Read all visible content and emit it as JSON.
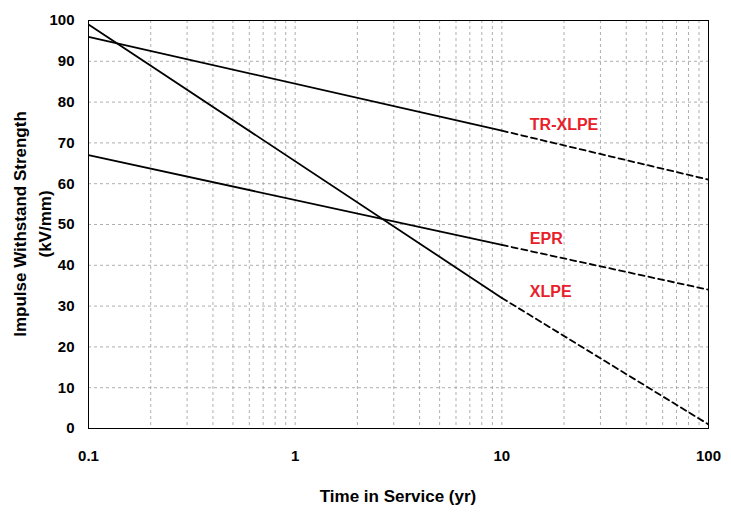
{
  "chart_data": {
    "type": "line",
    "x_label": "Time in Service (yr)",
    "y_label": "Impulse Withstand Strength\n(kV/mm)",
    "log": "x",
    "grid": true,
    "color": "#000000",
    "xlim": [
      0.1,
      100
    ],
    "xticks": [
      0.1,
      1,
      10,
      100
    ],
    "ylim": [
      0,
      100
    ],
    "yticks": [
      0,
      10,
      20,
      30,
      40,
      50,
      60,
      70,
      80,
      90,
      100
    ],
    "series": [
      {
        "name": "TR-XLPE",
        "color": "#e8202a",
        "line_style": "solid",
        "x": [
          0.1,
          10
        ],
        "values": [
          96,
          73
        ],
        "projection": {
          "line_style": "dashed",
          "x": [
            10,
            100
          ],
          "values": [
            73,
            61
          ]
        }
      },
      {
        "name": "EPR",
        "color": "#e8202a",
        "line_style": "solid",
        "x": [
          0.1,
          10
        ],
        "values": [
          67,
          45
        ],
        "projection": {
          "line_style": "dashed",
          "x": [
            10,
            100
          ],
          "values": [
            45,
            34
          ]
        }
      },
      {
        "name": "XLPE",
        "color": "#e8202a",
        "line_style": "solid",
        "x": [
          0.1,
          10
        ],
        "values": [
          99,
          32
        ],
        "projection": {
          "line_style": "dashed",
          "x": [
            10,
            100
          ],
          "values": [
            32,
            1
          ]
        }
      }
    ]
  }
}
